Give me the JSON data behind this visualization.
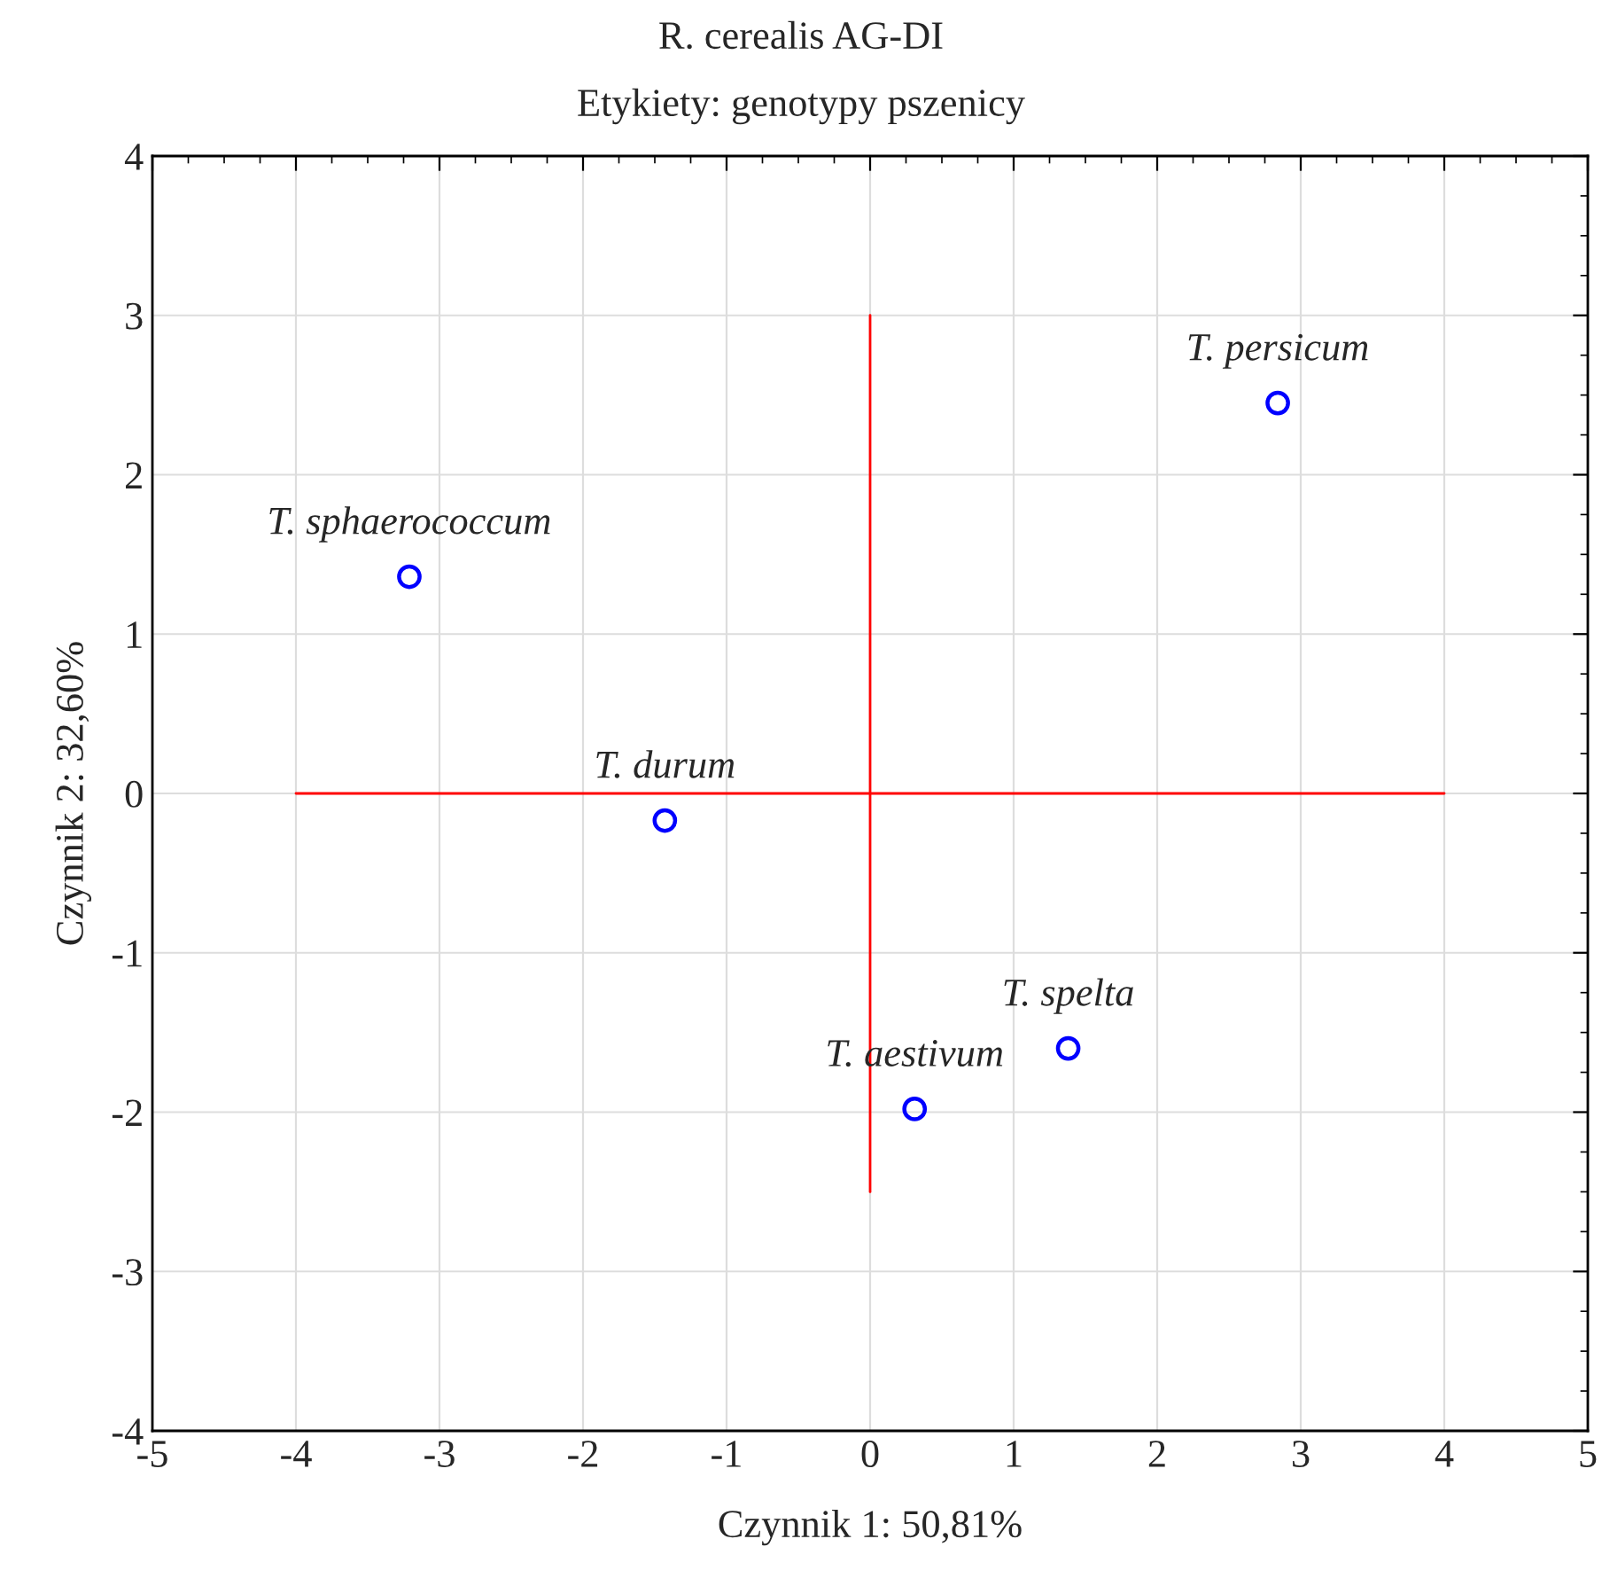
{
  "chart_data": {
    "type": "scatter",
    "title": "R. cerealis AG-DI",
    "subtitle": "Etykiety: genotypy pszenicy",
    "xlabel": "Czynnik 1: 50,81%",
    "ylabel": "Czynnik 2: 32,60%",
    "xlim": [
      -5,
      5
    ],
    "ylim": [
      -4,
      4
    ],
    "xticks": [
      -5,
      -4,
      -3,
      -2,
      -1,
      0,
      1,
      2,
      3,
      4,
      5
    ],
    "yticks": [
      -4,
      -3,
      -2,
      -1,
      0,
      1,
      2,
      3,
      4
    ],
    "grid": true,
    "series": [
      {
        "type": "line",
        "color": "#ff0000",
        "x": [
          -4,
          4
        ],
        "values": [
          0,
          0
        ],
        "marker": "none"
      },
      {
        "type": "line",
        "color": "#ff0000",
        "x": [
          0,
          0
        ],
        "values": [
          -2.5,
          3
        ],
        "marker": "none"
      },
      {
        "marker": "circle",
        "color": "#0000ff",
        "x": [
          2.84,
          -3.21,
          -1.43,
          1.38,
          0.31
        ],
        "values": [
          2.45,
          1.36,
          -0.17,
          -1.6,
          -1.98
        ]
      }
    ],
    "annotations": [
      {
        "text": "T. persicum",
        "x": 2.84,
        "y": 2.45
      },
      {
        "text": "T. sphaerococcum",
        "x": -3.21,
        "y": 1.36
      },
      {
        "text": "T. durum",
        "x": -1.43,
        "y": -0.17
      },
      {
        "text": "T. spelta",
        "x": 1.38,
        "y": -1.6
      },
      {
        "text": "T. aestivum",
        "x": 0.31,
        "y": -1.98
      }
    ]
  }
}
